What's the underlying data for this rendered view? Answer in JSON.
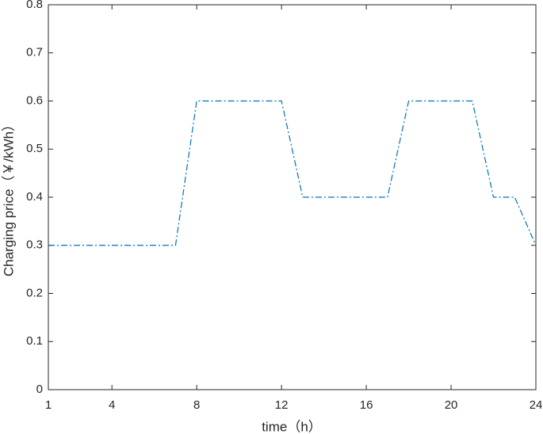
{
  "chart_data": {
    "type": "line",
    "xlabel": "time（h）",
    "ylabel": "Charging price（￥/kWh）",
    "x": [
      1,
      2,
      3,
      4,
      5,
      6,
      7,
      8,
      9,
      10,
      11,
      12,
      13,
      14,
      15,
      16,
      17,
      18,
      19,
      20,
      21,
      22,
      23,
      24
    ],
    "values": [
      0.3,
      0.3,
      0.3,
      0.3,
      0.3,
      0.3,
      0.3,
      0.6,
      0.6,
      0.6,
      0.6,
      0.6,
      0.4,
      0.4,
      0.4,
      0.4,
      0.4,
      0.6,
      0.6,
      0.6,
      0.6,
      0.4,
      0.4,
      0.3
    ],
    "color": "#0072bd",
    "xlim": [
      1,
      24
    ],
    "xticks": [
      1,
      4,
      8,
      12,
      16,
      20,
      24
    ],
    "ylim": [
      0,
      0.8
    ],
    "yticks": [
      0,
      0.1,
      0.2,
      0.3,
      0.4,
      0.5,
      0.6,
      0.7,
      0.8
    ]
  }
}
